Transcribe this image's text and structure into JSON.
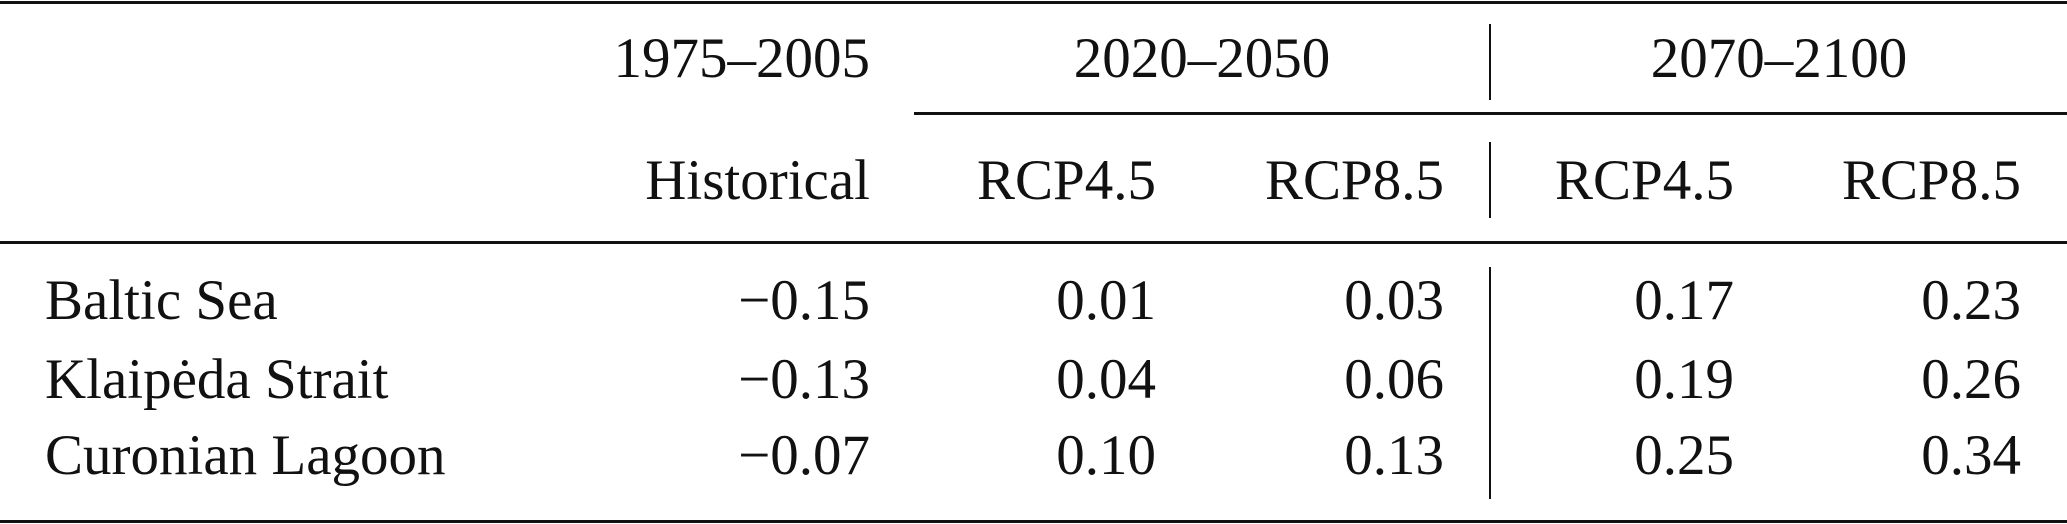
{
  "table": {
    "period_headers": [
      "1975–2005",
      "2020–2050",
      "2070–2100"
    ],
    "scenario_headers": [
      "Historical",
      "RCP4.5",
      "RCP8.5",
      "RCP4.5",
      "RCP8.5"
    ],
    "rows": [
      {
        "label": "Baltic Sea",
        "values": [
          "−0.15",
          "0.01",
          "0.03",
          "0.17",
          "0.23"
        ]
      },
      {
        "label": "Klaipėda Strait",
        "values": [
          "−0.13",
          "0.04",
          "0.06",
          "0.19",
          "0.26"
        ]
      },
      {
        "label": "Curonian Lagoon",
        "values": [
          "−0.07",
          "0.10",
          "0.13",
          "0.25",
          "0.34"
        ]
      }
    ]
  }
}
